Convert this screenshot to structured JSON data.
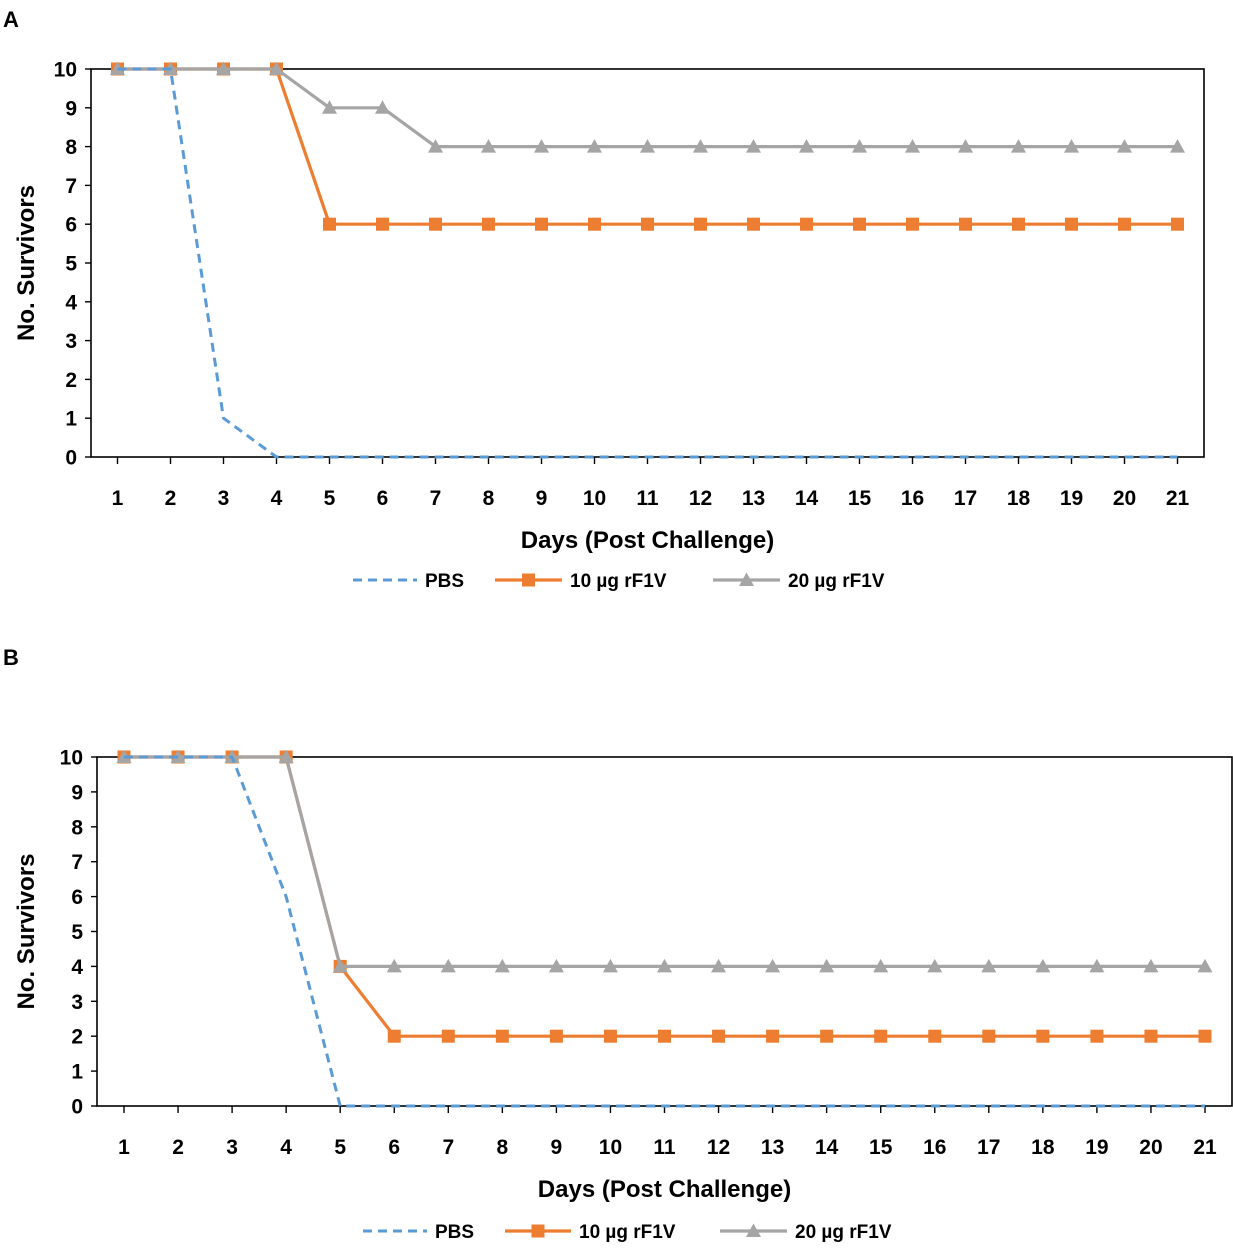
{
  "chart_data": [
    {
      "type": "line",
      "panel_label": "A",
      "title": "",
      "xlabel": "Days (Post Challenge)",
      "ylabel": "No. Survivors",
      "x": [
        1,
        2,
        3,
        4,
        5,
        6,
        7,
        8,
        9,
        10,
        11,
        12,
        13,
        14,
        15,
        16,
        17,
        18,
        19,
        20,
        21
      ],
      "xlim": [
        1,
        21
      ],
      "ylim": [
        0,
        10
      ],
      "yticks": [
        0,
        1,
        2,
        3,
        4,
        5,
        6,
        7,
        8,
        9,
        10
      ],
      "grid": false,
      "legend_position": "bottom",
      "series": [
        {
          "name": "PBS",
          "color": "#5B9BD5",
          "style": "dashed",
          "marker": "none",
          "values": [
            10,
            10,
            1,
            0,
            0,
            0,
            0,
            0,
            0,
            0,
            0,
            0,
            0,
            0,
            0,
            0,
            0,
            0,
            0,
            0,
            0
          ]
        },
        {
          "name": "10 µg rF1V",
          "color": "#ED7D31",
          "style": "solid",
          "marker": "square",
          "values": [
            10,
            10,
            10,
            10,
            6,
            6,
            6,
            6,
            6,
            6,
            6,
            6,
            6,
            6,
            6,
            6,
            6,
            6,
            6,
            6,
            6
          ]
        },
        {
          "name": "20 µg rF1V",
          "color": "#A5A5A5",
          "style": "solid",
          "marker": "triangle",
          "values": [
            10,
            10,
            10,
            10,
            9,
            9,
            8,
            8,
            8,
            8,
            8,
            8,
            8,
            8,
            8,
            8,
            8,
            8,
            8,
            8,
            8
          ]
        }
      ]
    },
    {
      "type": "line",
      "panel_label": "B",
      "title": "",
      "xlabel": "Days (Post Challenge)",
      "ylabel": "No. Survivors",
      "x": [
        1,
        2,
        3,
        4,
        5,
        6,
        7,
        8,
        9,
        10,
        11,
        12,
        13,
        14,
        15,
        16,
        17,
        18,
        19,
        20,
        21
      ],
      "xlim": [
        1,
        21
      ],
      "ylim": [
        0,
        10
      ],
      "yticks": [
        0,
        1,
        2,
        3,
        4,
        5,
        6,
        7,
        8,
        9,
        10
      ],
      "grid": false,
      "legend_position": "bottom",
      "series": [
        {
          "name": "PBS",
          "color": "#5B9BD5",
          "style": "dashed",
          "marker": "none",
          "values": [
            10,
            10,
            10,
            6,
            0,
            0,
            0,
            0,
            0,
            0,
            0,
            0,
            0,
            0,
            0,
            0,
            0,
            0,
            0,
            0,
            0
          ]
        },
        {
          "name": "10 µg rF1V",
          "color": "#ED7D31",
          "style": "solid",
          "marker": "square",
          "values": [
            10,
            10,
            10,
            10,
            4,
            2,
            2,
            2,
            2,
            2,
            2,
            2,
            2,
            2,
            2,
            2,
            2,
            2,
            2,
            2,
            2
          ]
        },
        {
          "name": "20 µg rF1V",
          "color": "#A5A5A5",
          "style": "solid",
          "marker": "triangle",
          "values": [
            10,
            10,
            10,
            10,
            4,
            4,
            4,
            4,
            4,
            4,
            4,
            4,
            4,
            4,
            4,
            4,
            4,
            4,
            4,
            4,
            4
          ]
        }
      ]
    }
  ]
}
